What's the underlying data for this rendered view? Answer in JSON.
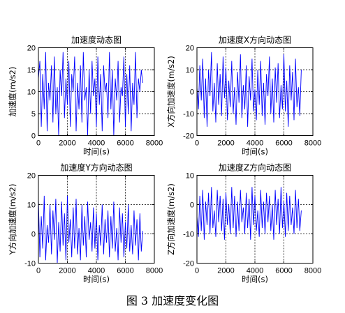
{
  "figure_caption": "图 3  加速度变化图",
  "chart_data": [
    {
      "type": "line",
      "title": "加速度动态图",
      "xlabel": "时间(s)",
      "ylabel": "加速度(m/s2)",
      "xlim": [
        0,
        8000
      ],
      "ylim": [
        0,
        20
      ],
      "xticks": [
        0,
        2000,
        4000,
        6000,
        8000
      ],
      "yticks": [
        0,
        5,
        10,
        15,
        20
      ],
      "grid": "dashed",
      "line_color": "#0000ff",
      "series": [
        {
          "x": [
            0,
            100,
            200,
            300,
            400,
            500,
            600,
            700,
            800,
            900,
            1000,
            1100,
            1200,
            1300,
            1400,
            1500,
            1600,
            1700,
            1800,
            1900,
            2000,
            2100,
            2200,
            2300,
            2400,
            2500,
            2600,
            2700,
            2800,
            2900,
            3000,
            3100,
            3200,
            3300,
            3400,
            3500,
            3600,
            3700,
            3800,
            3900,
            4000,
            4100,
            4200,
            4300,
            4400,
            4500,
            4600,
            4700,
            4800,
            4900,
            5000,
            5100,
            5200,
            5300,
            5400,
            5500,
            5600,
            5700,
            5800,
            5900,
            6000,
            6100,
            6200,
            6300,
            6400,
            6500,
            6600,
            6700,
            6800,
            6900,
            7000,
            7100,
            7200
          ],
          "values": [
            13,
            17,
            2,
            14,
            6,
            19,
            1,
            12,
            8,
            16,
            3,
            18,
            5,
            11,
            0,
            15,
            9,
            19,
            4,
            13,
            7,
            17,
            2,
            14,
            10,
            18,
            1,
            12,
            6,
            16,
            3,
            19,
            8,
            11,
            0,
            15,
            5,
            17,
            9,
            13,
            2,
            18,
            7,
            14,
            1,
            16,
            10,
            12,
            4,
            19,
            6,
            15,
            0,
            13,
            8,
            17,
            3,
            11,
            9,
            18,
            2,
            14,
            5,
            16,
            1,
            12,
            7,
            19,
            4,
            13,
            10,
            15,
            12
          ]
        }
      ]
    },
    {
      "type": "line",
      "title": "加速度X方向动态图",
      "xlabel": "时间(s)",
      "ylabel": "X方向加速度(m/s2)",
      "xlim": [
        0,
        8000
      ],
      "ylim": [
        -20,
        20
      ],
      "xticks": [
        0,
        2000,
        4000,
        6000,
        8000
      ],
      "yticks": [
        -20,
        -10,
        0,
        10,
        20
      ],
      "grid": "dashed",
      "line_color": "#0000ff",
      "series": [
        {
          "x": [
            0,
            100,
            200,
            300,
            400,
            500,
            600,
            700,
            800,
            900,
            1000,
            1100,
            1200,
            1300,
            1400,
            1500,
            1600,
            1700,
            1800,
            1900,
            2000,
            2100,
            2200,
            2300,
            2400,
            2500,
            2600,
            2700,
            2800,
            2900,
            3000,
            3100,
            3200,
            3300,
            3400,
            3500,
            3600,
            3700,
            3800,
            3900,
            4000,
            4100,
            4200,
            4300,
            4400,
            4500,
            4600,
            4700,
            4800,
            4900,
            5000,
            5100,
            5200,
            5300,
            5400,
            5500,
            5600,
            5700,
            5800,
            5900,
            6000,
            6100,
            6200,
            6300,
            6400,
            6500,
            6600,
            6700,
            6800,
            6900,
            7000,
            7100,
            7200
          ],
          "values": [
            2,
            -8,
            12,
            -4,
            15,
            -12,
            6,
            -16,
            10,
            -2,
            18,
            -9,
            4,
            -14,
            13,
            -6,
            8,
            -11,
            16,
            -3,
            11,
            -13,
            5,
            -7,
            14,
            -10,
            2,
            -15,
            9,
            -5,
            17,
            -12,
            3,
            -8,
            12,
            -16,
            7,
            -4,
            15,
            -9,
            1,
            -13,
            10,
            -6,
            14,
            -11,
            4,
            -15,
            8,
            -2,
            16,
            -10,
            6,
            -14,
            11,
            -5,
            13,
            -12,
            3,
            -8,
            17,
            -9,
            5,
            -16,
            12,
            -4,
            9,
            -13,
            15,
            -7,
            2,
            -11,
            10
          ]
        }
      ]
    },
    {
      "type": "line",
      "title": "加速度Y方向动态图",
      "xlabel": "时间(s)",
      "ylabel": "Y方向加速度(m/s2)",
      "xlim": [
        0,
        8000
      ],
      "ylim": [
        -10,
        20
      ],
      "xticks": [
        0,
        2000,
        4000,
        6000,
        8000
      ],
      "yticks": [
        -10,
        0,
        10,
        20
      ],
      "grid": "dashed",
      "line_color": "#0000ff",
      "series": [
        {
          "x": [
            0,
            100,
            200,
            300,
            400,
            500,
            600,
            700,
            800,
            900,
            1000,
            1100,
            1200,
            1300,
            1400,
            1500,
            1600,
            1700,
            1800,
            1900,
            2000,
            2100,
            2200,
            2300,
            2400,
            2500,
            2600,
            2700,
            2800,
            2900,
            3000,
            3100,
            3200,
            3300,
            3400,
            3500,
            3600,
            3700,
            3800,
            3900,
            4000,
            4100,
            4200,
            4300,
            4400,
            4500,
            4600,
            4700,
            4800,
            4900,
            5000,
            5100,
            5200,
            5300,
            5400,
            5500,
            5600,
            5700,
            5800,
            5900,
            6000,
            6100,
            6200,
            6300,
            6400,
            6500,
            6600,
            6700,
            6800,
            6900,
            7000,
            7100,
            7200
          ],
          "values": [
            12,
            -8,
            6,
            -5,
            13,
            -9,
            3,
            -3,
            10,
            -7,
            8,
            -2,
            12,
            -10,
            4,
            -6,
            11,
            -4,
            7,
            -9,
            13,
            -3,
            5,
            -8,
            9,
            -5,
            12,
            -7,
            2,
            -9,
            10,
            -4,
            6,
            -8,
            11,
            -2,
            4,
            -6,
            9,
            -5,
            7,
            -9,
            3,
            -4,
            10,
            -7,
            5,
            -3,
            8,
            -8,
            6,
            -5,
            11,
            -6,
            2,
            -9,
            9,
            -3,
            7,
            -8,
            4,
            -5,
            10,
            -6,
            3,
            -7,
            8,
            -4,
            5,
            -9,
            7,
            -6,
            1
          ]
        }
      ]
    },
    {
      "type": "line",
      "title": "加速度Z方向动态图",
      "xlabel": "时间(s)",
      "ylabel": "Z方向加速度(m/s2)",
      "xlim": [
        0,
        8000
      ],
      "ylim": [
        -20,
        10
      ],
      "xticks": [
        0,
        2000,
        4000,
        6000,
        8000
      ],
      "yticks": [
        -20,
        -10,
        0,
        10
      ],
      "grid": "dashed",
      "line_color": "#0000ff",
      "series": [
        {
          "x": [
            0,
            100,
            200,
            300,
            400,
            500,
            600,
            700,
            800,
            900,
            1000,
            1100,
            1200,
            1300,
            1400,
            1500,
            1600,
            1700,
            1800,
            1900,
            2000,
            2100,
            2200,
            2300,
            2400,
            2500,
            2600,
            2700,
            2800,
            2900,
            3000,
            3100,
            3200,
            3300,
            3400,
            3500,
            3600,
            3700,
            3800,
            3900,
            4000,
            4100,
            4200,
            4300,
            4400,
            4500,
            4600,
            4700,
            4800,
            4900,
            5000,
            5100,
            5200,
            5300,
            5400,
            5500,
            5600,
            5700,
            5800,
            5900,
            6000,
            6100,
            6200,
            6300,
            6400,
            6500,
            6600,
            6700,
            6800,
            6900,
            7000,
            7100,
            7200
          ],
          "values": [
            -4,
            -11,
            3,
            -9,
            5,
            -12,
            1,
            -7,
            4,
            -10,
            6,
            -8,
            -2,
            -11,
            5,
            -6,
            3,
            -9,
            2,
            -12,
            4,
            -7,
            0,
            -10,
            6,
            -8,
            3,
            -11,
            1,
            -9,
            5,
            -6,
            -1,
            -10,
            4,
            -8,
            2,
            -12,
            6,
            -7,
            3,
            -9,
            -2,
            -11,
            5,
            -8,
            1,
            -10,
            4,
            -6,
            3,
            -9,
            0,
            -12,
            5,
            -7,
            2,
            -10,
            6,
            -8,
            1,
            -11,
            4,
            -9,
            3,
            -7,
            -1,
            -10,
            5,
            -8,
            2,
            -9,
            -2
          ]
        }
      ]
    }
  ]
}
